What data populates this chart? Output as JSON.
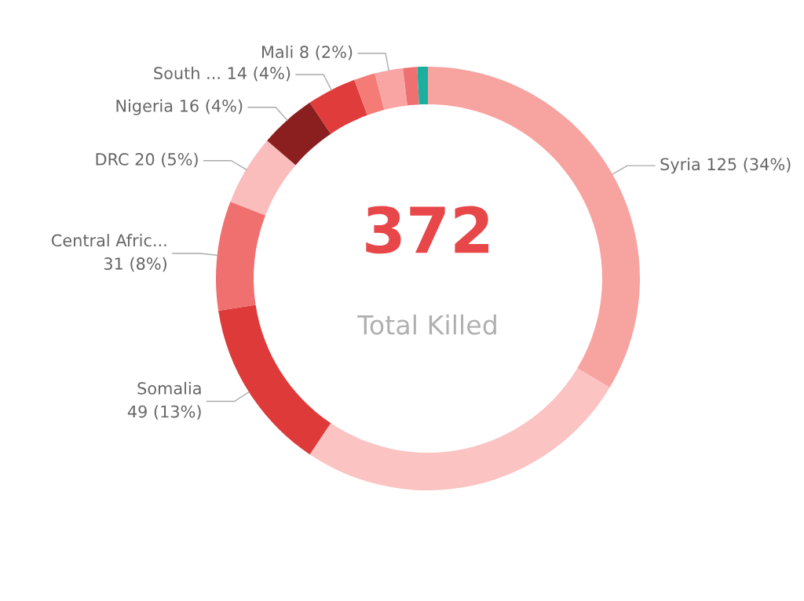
{
  "chart_data": {
    "type": "donut",
    "categories": [
      "Syria",
      null,
      "Somalia",
      "Central Afric...",
      "DRC",
      "Nigeria",
      "South ...",
      null,
      "Mali",
      null,
      null
    ],
    "values": [
      125,
      96,
      49,
      31,
      20,
      16,
      14,
      6,
      8,
      4,
      3
    ],
    "colors": [
      "#f7a3a0",
      "#fbc3c2",
      "#de3a3a",
      "#f07070",
      "#fbbcbc",
      "#8b1e1e",
      "#e03c3c",
      "#f57b77",
      "#f9a5a3",
      "#ee7070",
      "#1aaf9f"
    ],
    "value_labels": [
      "125 (34%)",
      null,
      "49 (13%)",
      "31 (8%)",
      "20 (5%)",
      "16 (4%)",
      "14 (4%)",
      null,
      "8 (2%)",
      null,
      null
    ],
    "annotations": [
      "372",
      "Total Killed"
    ],
    "legend": false
  }
}
